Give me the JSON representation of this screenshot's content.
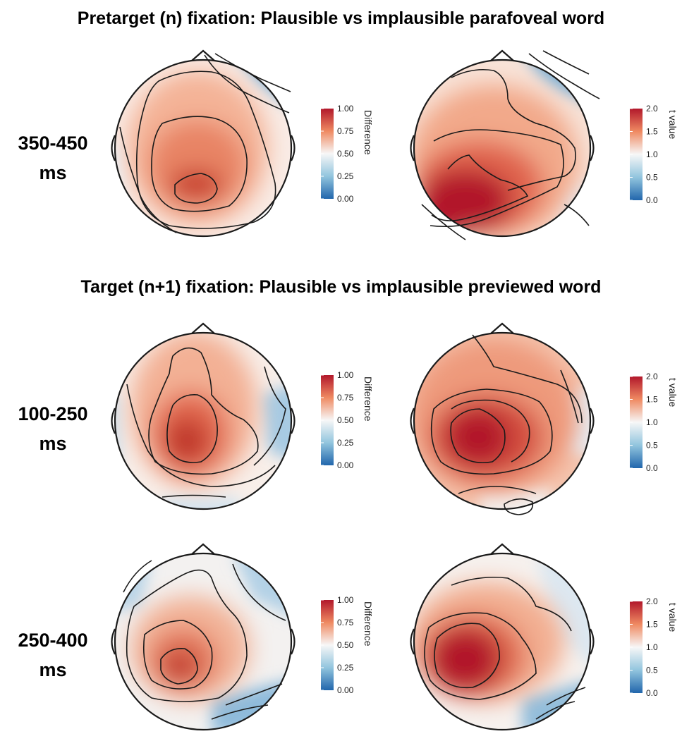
{
  "sections": [
    {
      "title": "Pretarget (n) fixation: Plausible vs implausible parafoveal word"
    },
    {
      "title": "Target (n+1) fixation: Plausible vs implausible previewed word"
    }
  ],
  "rows": [
    {
      "label_line1": "350-450",
      "label_line2": "ms"
    },
    {
      "label_line1": "100-250",
      "label_line2": "ms"
    },
    {
      "label_line1": "250-400",
      "label_line2": "ms"
    }
  ],
  "colorbars": {
    "difference": {
      "title": "Difference",
      "ticks": [
        "1.00",
        "0.75",
        "0.50",
        "0.25",
        "0.00"
      ]
    },
    "tvalue": {
      "title": "t value",
      "ticks": [
        "2.0",
        "1.5",
        "1.0",
        "0.5",
        "0.0"
      ]
    }
  },
  "colors": {
    "high": "#b2182b",
    "mid_high": "#ef8a62",
    "mid": "#f7f7f7",
    "mid_low": "#92c5de",
    "low": "#2166ac",
    "contour": "#1a1a1a"
  }
}
